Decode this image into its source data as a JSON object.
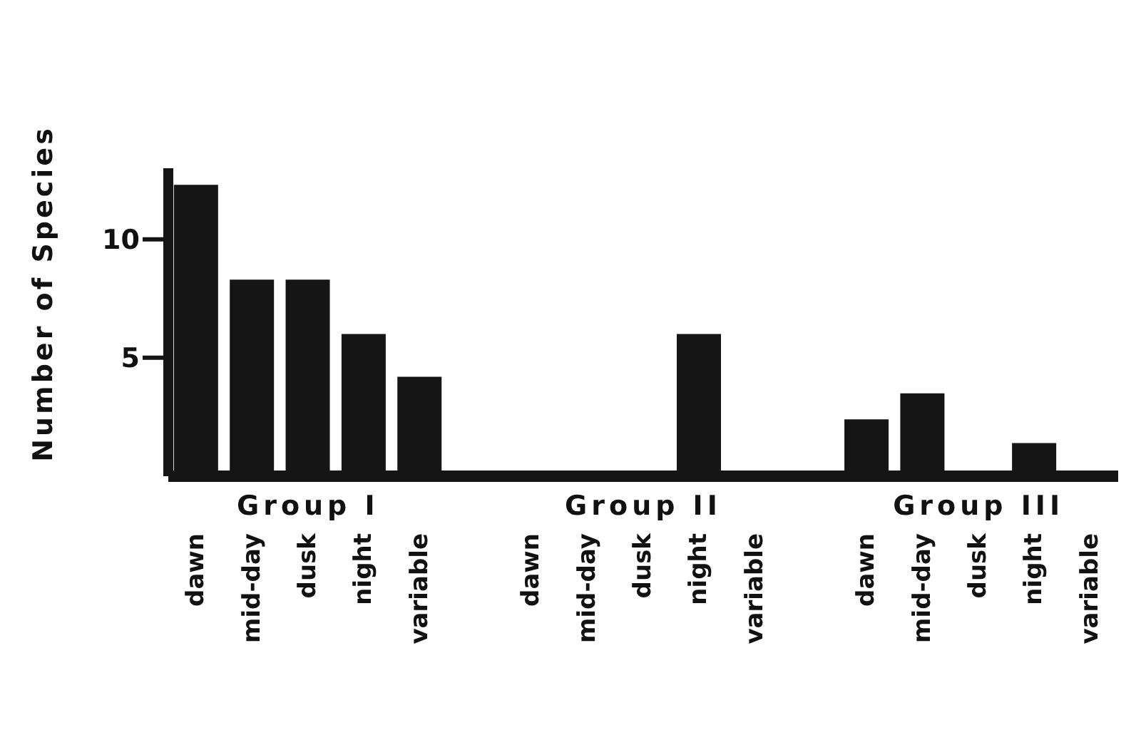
{
  "chart_data": {
    "type": "bar",
    "ylabel": "Number of Species",
    "categories": [
      "dawn",
      "mid-day",
      "dusk",
      "night",
      "variable",
      null,
      "dawn",
      "mid-day",
      "dusk",
      "night",
      "variable",
      null,
      "dawn",
      "mid-day",
      "dusk",
      "night",
      "variable"
    ],
    "values": [
      12.3,
      8.3,
      8.3,
      6.0,
      4.2,
      null,
      0,
      0,
      0,
      6.0,
      0,
      null,
      2.4,
      3.5,
      0,
      1.4,
      0
    ],
    "annotations": [
      "Group I",
      "Group II",
      "Group III"
    ],
    "color": "#151515",
    "ylim": [
      0,
      13
    ],
    "yticks": [
      5,
      10
    ],
    "grid": false,
    "legend": false
  }
}
